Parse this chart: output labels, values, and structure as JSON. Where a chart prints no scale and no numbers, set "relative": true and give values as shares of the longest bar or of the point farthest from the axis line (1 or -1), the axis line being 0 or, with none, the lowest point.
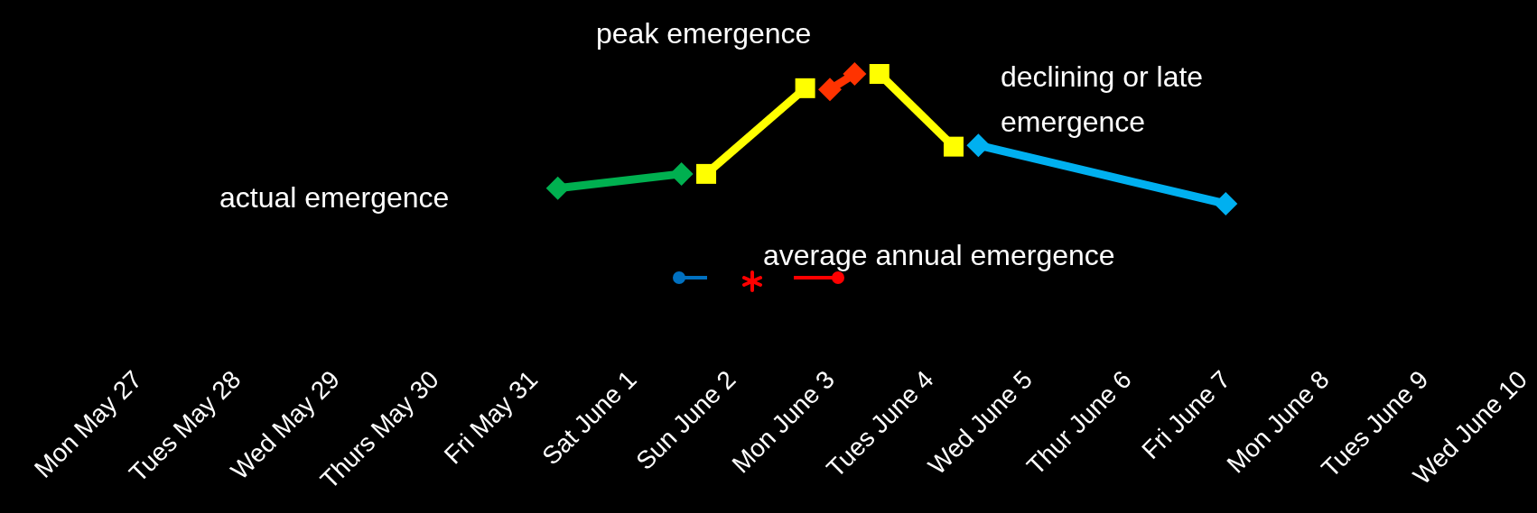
{
  "chart_data": {
    "type": "line",
    "relative": true,
    "categories": [
      "Mon May 27",
      null,
      null,
      null,
      "Tues May 28",
      null,
      null,
      null,
      "Wed May 29",
      null,
      null,
      null,
      "Thurs May 30",
      null,
      null,
      null,
      "Fri May 31",
      null,
      null,
      null,
      "Sat June 1",
      null,
      null,
      null,
      "Sun June 2",
      null,
      null,
      null,
      "Mon June 3",
      null,
      null,
      null,
      "Tues June 4",
      null,
      null,
      null,
      "Wed June 5",
      null,
      null,
      null,
      "Thur June 6",
      null,
      null,
      null,
      "Fri June 7",
      null,
      null,
      null,
      "Mon June 8",
      null,
      null,
      null,
      "Tues June 9",
      null,
      null,
      null,
      "Wed June 10"
    ],
    "grid": false,
    "line_style": "solid",
    "series": [
      {
        "color": "#00b050",
        "marker": "diamond",
        "values": [
          null,
          null,
          null,
          null,
          null,
          null,
          null,
          null,
          null,
          null,
          null,
          null,
          null,
          null,
          null,
          null,
          null,
          0.12,
          null,
          null,
          null,
          null,
          0.23,
          null,
          null,
          null,
          null,
          null,
          null,
          null,
          null,
          null,
          null,
          null,
          null,
          null,
          null,
          null,
          null,
          null,
          null,
          null,
          null,
          null,
          null,
          null,
          null,
          null,
          null,
          null,
          null,
          null,
          null,
          null,
          null,
          null,
          null
        ]
      },
      {
        "color": "#ffff00",
        "marker": "square",
        "values": [
          null,
          null,
          null,
          null,
          null,
          null,
          null,
          null,
          null,
          null,
          null,
          null,
          null,
          null,
          null,
          null,
          null,
          null,
          null,
          null,
          null,
          null,
          null,
          0.23,
          null,
          null,
          null,
          0.89,
          null,
          null,
          null,
          null,
          null,
          null,
          null,
          null,
          null,
          null,
          null,
          null,
          null,
          null,
          null,
          null,
          null,
          null,
          null,
          null,
          null,
          null,
          null,
          null,
          null,
          null,
          null,
          null,
          null
        ]
      },
      {
        "color": "#ff3300",
        "marker": "diamond",
        "values": [
          null,
          null,
          null,
          null,
          null,
          null,
          null,
          null,
          null,
          null,
          null,
          null,
          null,
          null,
          null,
          null,
          null,
          null,
          null,
          null,
          null,
          null,
          null,
          null,
          null,
          null,
          null,
          null,
          0.88,
          1,
          null,
          null,
          null,
          null,
          null,
          null,
          null,
          null,
          null,
          null,
          null,
          null,
          null,
          null,
          null,
          null,
          null,
          null,
          null,
          null,
          null,
          null,
          null,
          null,
          null,
          null,
          null
        ]
      },
      {
        "color": "#ffff00",
        "marker": "square",
        "values": [
          null,
          null,
          null,
          null,
          null,
          null,
          null,
          null,
          null,
          null,
          null,
          null,
          null,
          null,
          null,
          null,
          null,
          null,
          null,
          null,
          null,
          null,
          null,
          null,
          null,
          null,
          null,
          null,
          null,
          null,
          1,
          null,
          null,
          0.44,
          null,
          null,
          null,
          null,
          null,
          null,
          null,
          null,
          null,
          null,
          null,
          null,
          null,
          null,
          null,
          null,
          null,
          null,
          null,
          null,
          null,
          null,
          null
        ]
      },
      {
        "color": "#00b0f0",
        "marker": "diamond",
        "values": [
          null,
          null,
          null,
          null,
          null,
          null,
          null,
          null,
          null,
          null,
          null,
          null,
          null,
          null,
          null,
          null,
          null,
          null,
          null,
          null,
          null,
          null,
          null,
          null,
          null,
          null,
          null,
          null,
          null,
          null,
          null,
          null,
          null,
          null,
          0.45,
          null,
          null,
          null,
          null,
          null,
          null,
          null,
          null,
          null,
          0,
          null,
          null,
          null,
          null,
          null,
          null,
          null,
          null,
          null,
          null,
          null,
          null
        ]
      }
    ],
    "annotations": [
      "actual emergence",
      "peak emergence",
      "declining or late\nemergence",
      "average annual emergence"
    ]
  }
}
